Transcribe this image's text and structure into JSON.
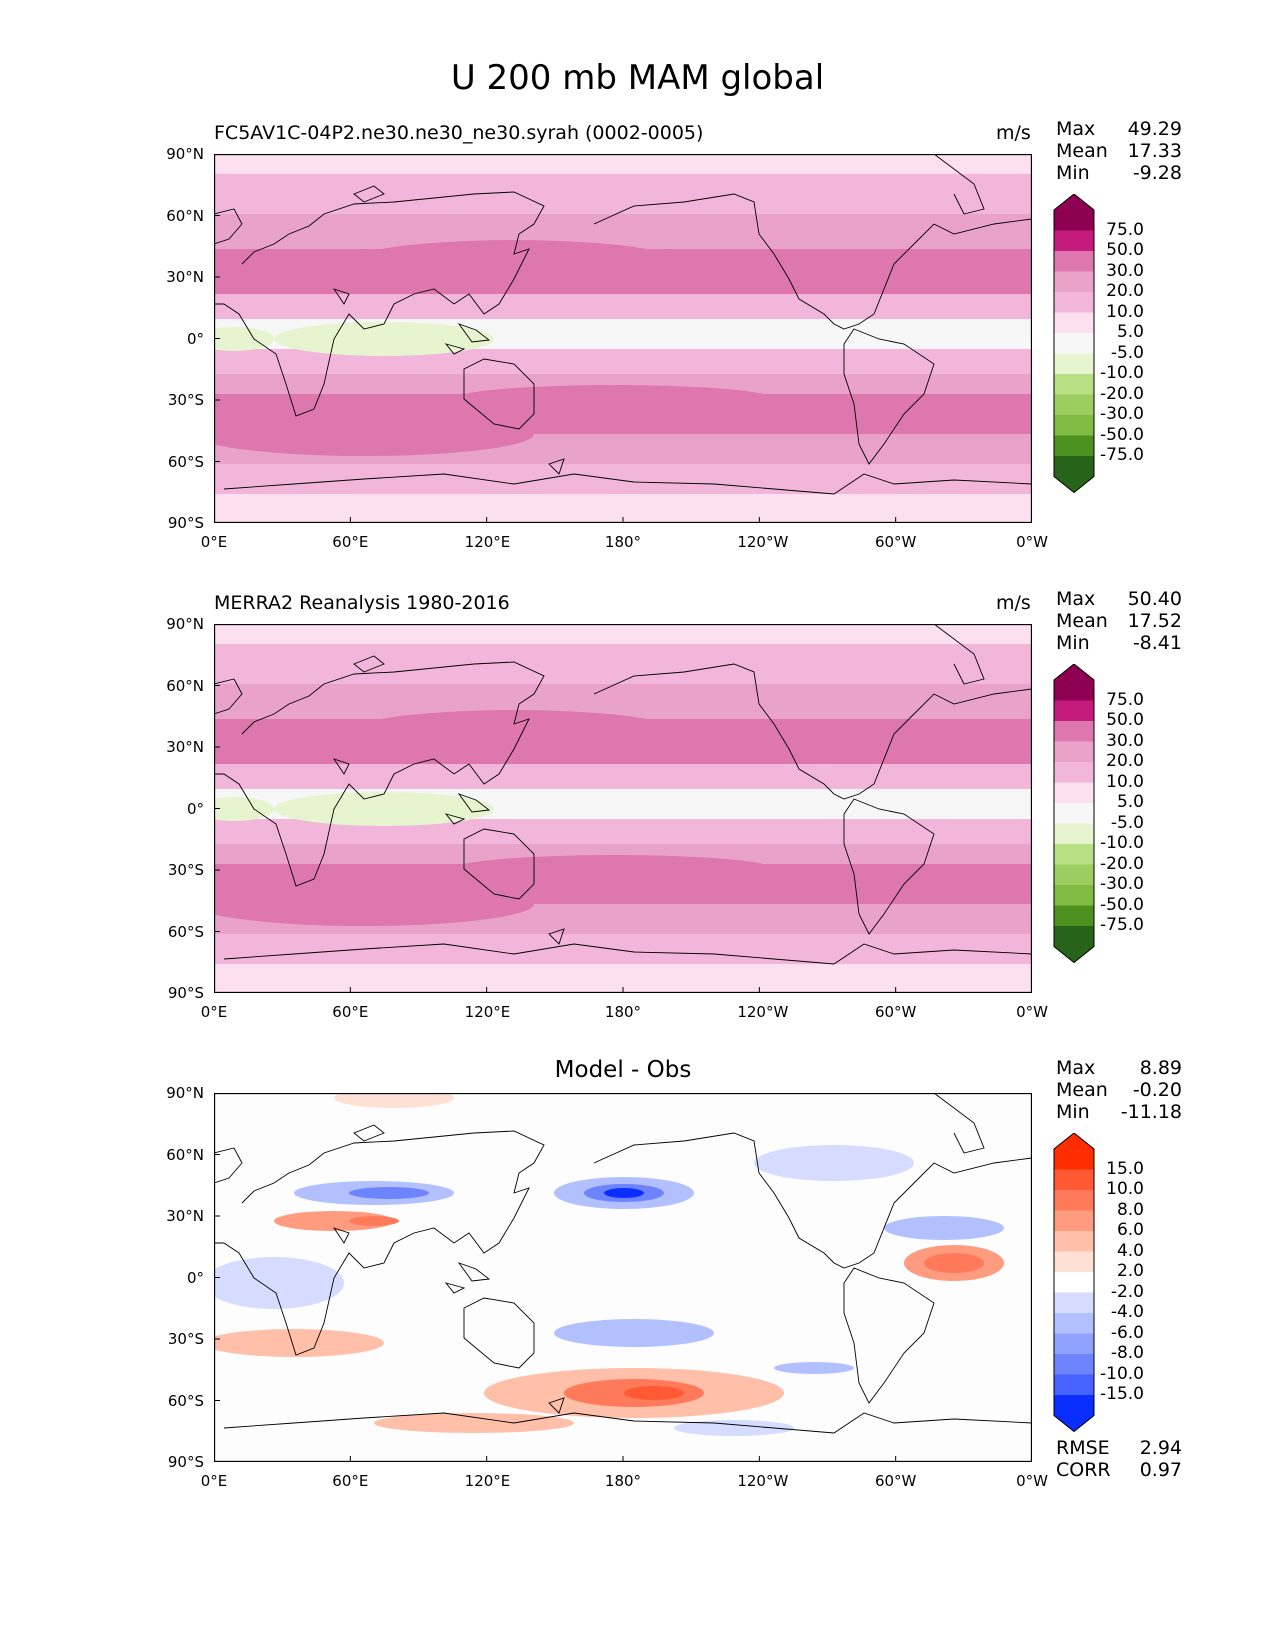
{
  "title": "U 200 mb MAM global",
  "lat_ticks": [
    "90°N",
    "60°N",
    "30°N",
    "0°",
    "30°S",
    "60°S",
    "90°S"
  ],
  "lon_ticks": [
    "0°E",
    "60°E",
    "120°E",
    "180°",
    "120°W",
    "60°W",
    "0°W"
  ],
  "panels": [
    {
      "id": "model",
      "title": "FC5AV1C-04P2.ne30.ne30_ne30.syrah (0002-0005)",
      "title_align": "left",
      "units": "m/s",
      "stats": {
        "max_label": "Max",
        "max": "49.29",
        "mean_label": "Mean",
        "mean": "17.33",
        "min_label": "Min",
        "min": "-9.28"
      },
      "colorbar": {
        "labels": [
          "75.0",
          "50.0",
          "30.0",
          "20.0",
          "10.0",
          "5.0",
          "-5.0",
          "-10.0",
          "-20.0",
          "-30.0",
          "-50.0",
          "-75.0"
        ],
        "colors": [
          "#8e0152",
          "#c51b7d",
          "#de77ae",
          "#e9a3c9",
          "#f1b6da",
          "#fde0ef",
          "#f7f7f7",
          "#e6f5d0",
          "#b8e186",
          "#9ccd5f",
          "#7fbc41",
          "#4d9221",
          "#276419"
        ]
      }
    },
    {
      "id": "obs",
      "title": "MERRA2 Reanalysis 1980-2016",
      "title_align": "left",
      "units": "m/s",
      "stats": {
        "max_label": "Max",
        "max": "50.40",
        "mean_label": "Mean",
        "mean": "17.52",
        "min_label": "Min",
        "min": "-8.41"
      },
      "colorbar": {
        "labels": [
          "75.0",
          "50.0",
          "30.0",
          "20.0",
          "10.0",
          "5.0",
          "-5.0",
          "-10.0",
          "-20.0",
          "-30.0",
          "-50.0",
          "-75.0"
        ],
        "colors": [
          "#8e0152",
          "#c51b7d",
          "#de77ae",
          "#e9a3c9",
          "#f1b6da",
          "#fde0ef",
          "#f7f7f7",
          "#e6f5d0",
          "#b8e186",
          "#9ccd5f",
          "#7fbc41",
          "#4d9221",
          "#276419"
        ]
      }
    },
    {
      "id": "diff",
      "title": "Model - Obs",
      "title_align": "center",
      "units": "",
      "stats": {
        "max_label": "Max",
        "max": "8.89",
        "mean_label": "Mean",
        "mean": "-0.20",
        "min_label": "Min",
        "min": "-11.18"
      },
      "colorbar": {
        "labels": [
          "15.0",
          "10.0",
          "8.0",
          "6.0",
          "4.0",
          "2.0",
          "-2.0",
          "-4.0",
          "-6.0",
          "-8.0",
          "-10.0",
          "-15.0"
        ],
        "colors": [
          "#ff2d00",
          "#ff5a33",
          "#ff7a5a",
          "#ff9c80",
          "#ffbfa9",
          "#ffe0d5",
          "#ffffff",
          "#d5dcff",
          "#b3c0ff",
          "#8fa2ff",
          "#6e84ff",
          "#4663ff",
          "#0a2eff"
        ]
      },
      "metrics": {
        "rmse_label": "RMSE",
        "rmse": "2.94",
        "corr_label": "CORR",
        "corr": "0.97"
      }
    }
  ]
}
